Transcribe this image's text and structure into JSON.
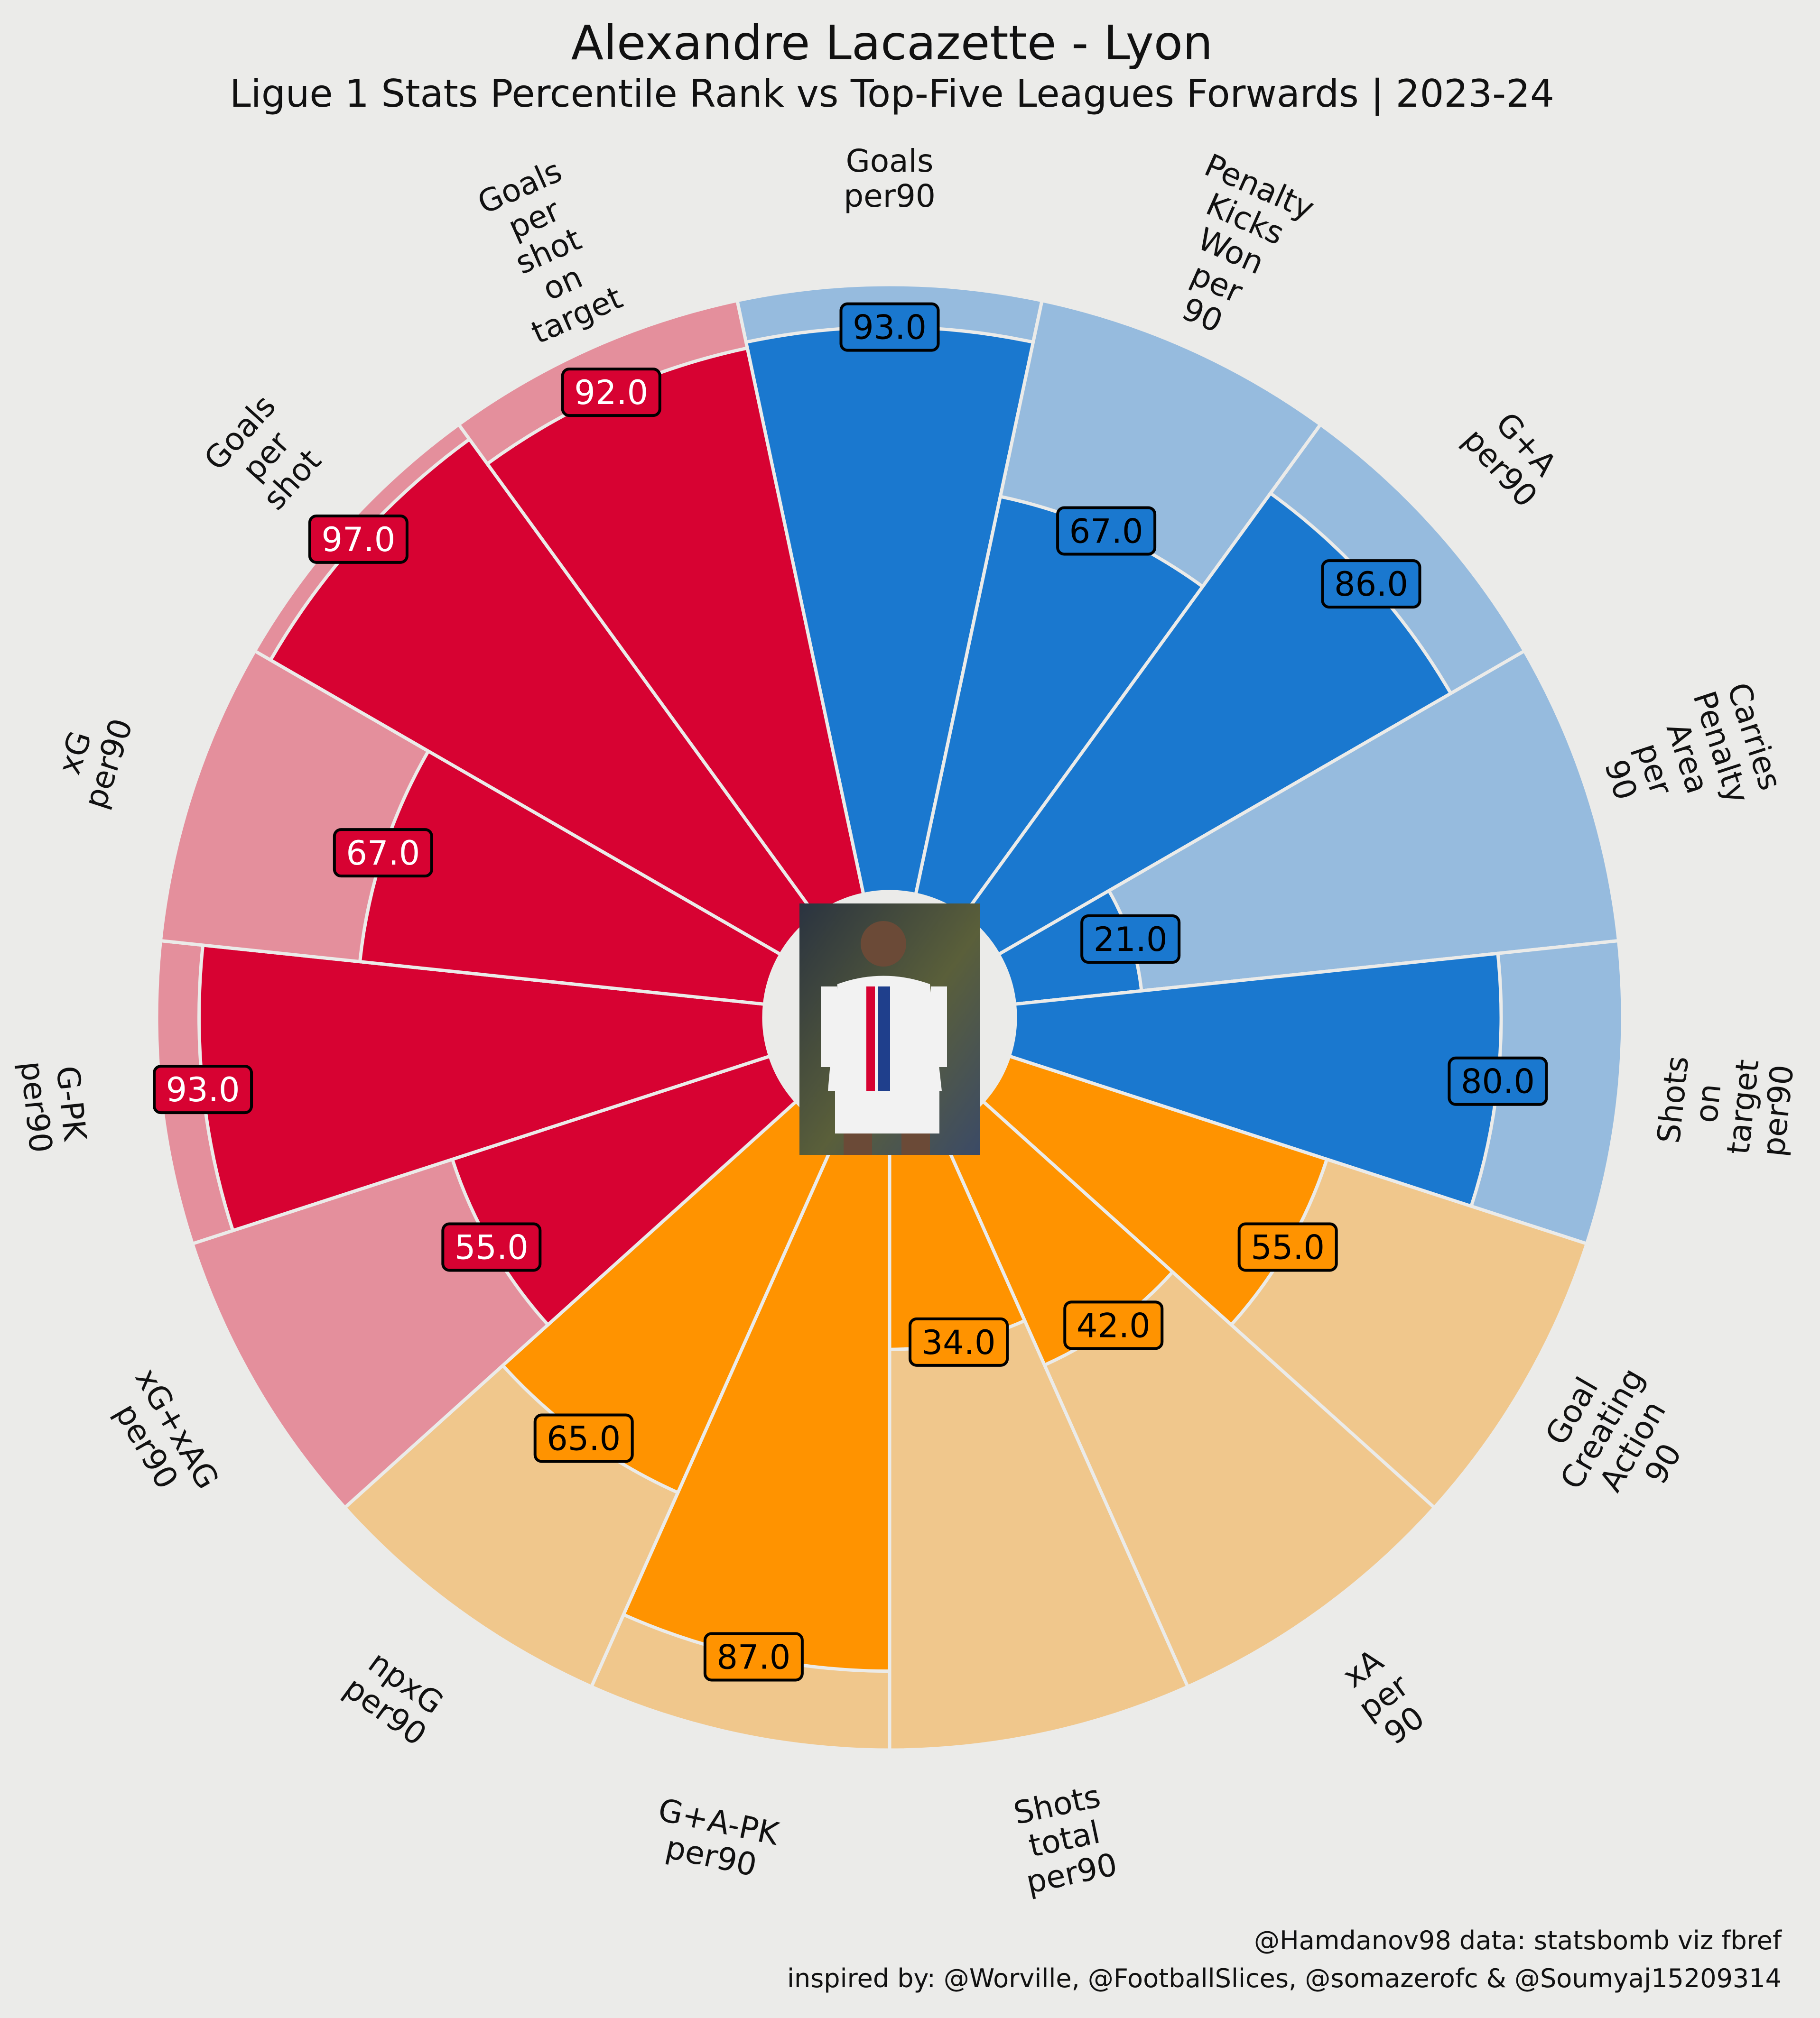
{
  "chart_data": {
    "type": "pizza",
    "title": "Alexandre Lacazette - Lyon",
    "subtitle": "Ligue 1 Stats Percentile Rank vs Top-Five Leagues  Forwards | 2023-24",
    "range": [
      0,
      100
    ],
    "slices": [
      {
        "label": "Goals\nper90",
        "value": 93.0,
        "display": "93.0",
        "group": "attacking"
      },
      {
        "label": "Penalty\nKicks\nWon\nper\n90",
        "value": 67.0,
        "display": "67.0",
        "group": "attacking"
      },
      {
        "label": "G+A\nper90",
        "value": 86.0,
        "display": "86.0",
        "group": "attacking"
      },
      {
        "label": "Carries\nPenalty\nArea\nper\n90",
        "value": 21.0,
        "display": "21.0",
        "group": "attacking"
      },
      {
        "label": "Shots\non\ntarget\nper90",
        "value": 80.0,
        "display": "80.0",
        "group": "attacking"
      },
      {
        "label": "Goal\nCreating\nAction\n90",
        "value": 55.0,
        "display": "55.0",
        "group": "creation"
      },
      {
        "label": "xA\nper\n90",
        "value": 42.0,
        "display": "42.0",
        "group": "creation"
      },
      {
        "label": "Shots\ntotal\nper90",
        "value": 34.0,
        "display": "34.0",
        "group": "creation"
      },
      {
        "label": "G+A-PK\nper90",
        "value": 87.0,
        "display": "87.0",
        "group": "creation"
      },
      {
        "label": "npxG\nper90",
        "value": 65.0,
        "display": "65.0",
        "group": "creation"
      },
      {
        "label": "xG+xAG\nper90",
        "value": 55.0,
        "display": "55.0",
        "group": "finishing"
      },
      {
        "label": "G-PK\nper90",
        "value": 93.0,
        "display": "93.0",
        "group": "finishing"
      },
      {
        "label": "xG\nper90",
        "value": 67.0,
        "display": "67.0",
        "group": "finishing"
      },
      {
        "label": "Goals\nper\nshot",
        "value": 97.0,
        "display": "97.0",
        "group": "finishing"
      },
      {
        "label": "Goals\nper\nshot\non\ntarget",
        "value": 92.0,
        "display": "92.0",
        "group": "finishing"
      }
    ],
    "groups": {
      "attacking": {
        "fill": "#1a78cf",
        "background": "#96bbde",
        "label_text": "#000000"
      },
      "creation": {
        "fill": "#ff9300",
        "background": "#f0c78c",
        "label_text": "#000000"
      },
      "finishing": {
        "fill": "#d70232",
        "background": "#e48f9c",
        "label_text": "#ffffff"
      }
    },
    "slice_edge_color": "#ebebe9",
    "grid": false,
    "legend": "none"
  },
  "center_image": {
    "icon": "player-photo",
    "alt": "Alexandre Lacazette"
  },
  "credits": {
    "line1": "@Hamdanov98 data: statsbomb viz fbref",
    "line2": "inspired by: @Worville, @FootballSlices, @somazerofc & @Soumyaj15209314"
  }
}
